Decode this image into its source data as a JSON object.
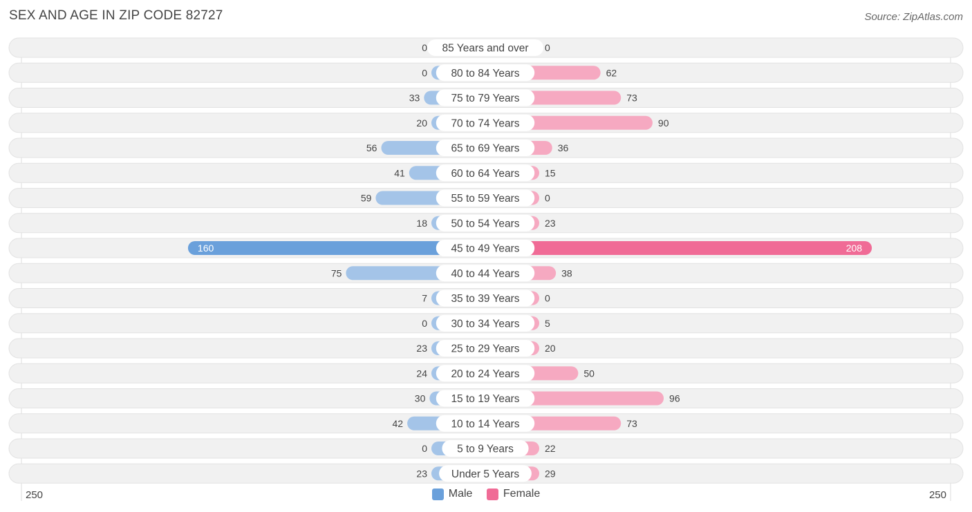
{
  "title": "SEX AND AGE IN ZIP CODE 82727",
  "source": "Source: ZipAtlas.com",
  "colors": {
    "male": "#a4c4e8",
    "male_strong": "#6aa0db",
    "female": "#f6a9c1",
    "female_strong": "#f06b96",
    "row_bg": "#f1f1f1"
  },
  "legend": {
    "male": "Male",
    "female": "Female"
  },
  "axis": {
    "left_label": "250",
    "right_label": "250"
  },
  "chart_data": {
    "type": "bar",
    "orientation": "horizontal-diverging",
    "xlim": [
      -250,
      250
    ],
    "categories": [
      "85 Years and over",
      "80 to 84 Years",
      "75 to 79 Years",
      "70 to 74 Years",
      "65 to 69 Years",
      "60 to 64 Years",
      "55 to 59 Years",
      "50 to 54 Years",
      "45 to 49 Years",
      "40 to 44 Years",
      "35 to 39 Years",
      "30 to 34 Years",
      "25 to 29 Years",
      "20 to 24 Years",
      "15 to 19 Years",
      "10 to 14 Years",
      "5 to 9 Years",
      "Under 5 Years"
    ],
    "series": [
      {
        "name": "Male",
        "values": [
          0,
          0,
          33,
          20,
          56,
          41,
          59,
          18,
          160,
          75,
          7,
          0,
          23,
          24,
          30,
          42,
          0,
          23
        ]
      },
      {
        "name": "Female",
        "values": [
          0,
          62,
          73,
          90,
          36,
          15,
          0,
          23,
          208,
          38,
          0,
          5,
          20,
          50,
          96,
          73,
          22,
          29
        ]
      }
    ]
  }
}
